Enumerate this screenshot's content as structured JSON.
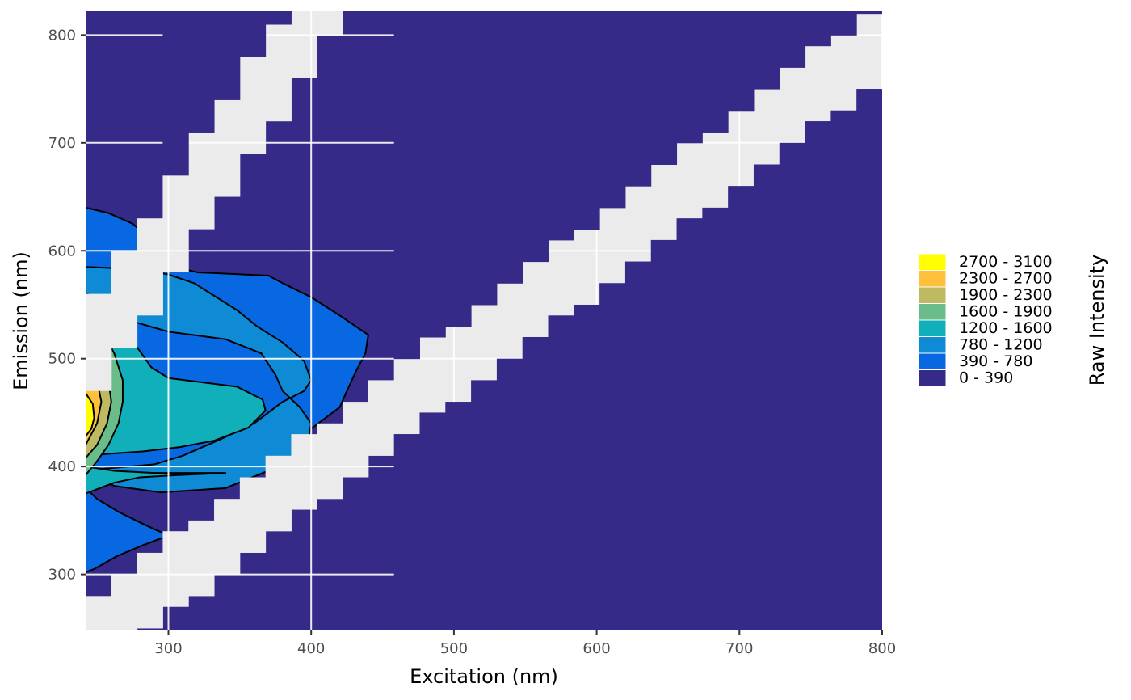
{
  "chart_data": {
    "type": "heatmap",
    "subtype": "filled-contour excitation-emission matrix",
    "xlabel": "Excitation (nm)",
    "ylabel": "Emission (nm)",
    "xlim": [
      242,
      800
    ],
    "ylim": [
      248,
      822
    ],
    "x_ticks": [
      300,
      400,
      500,
      600,
      700,
      800
    ],
    "y_ticks": [
      300,
      400,
      500,
      600,
      700,
      800
    ],
    "grid": true,
    "panel_background": "#EBEBEB",
    "legend": {
      "title": "Raw Intensity",
      "position": "right",
      "entries": [
        {
          "label": "2700 - 3100",
          "color": "#FFFF00"
        },
        {
          "label": "2300 - 2700",
          "color": "#FFC13B"
        },
        {
          "label": "1900 - 2300",
          "color": "#BDBA62"
        },
        {
          "label": "1600 - 1900",
          "color": "#6ABD8A"
        },
        {
          "label": "1200 - 1600",
          "color": "#10AFB9"
        },
        {
          "label": "780 - 1200",
          "color": "#0E8BD4"
        },
        {
          "label": "390 - 780",
          "color": "#0868E2"
        },
        {
          "label": "0 - 390",
          "color": "#352A87"
        }
      ]
    },
    "step_x": 18,
    "step_y": 10,
    "background_level": "0 - 390",
    "masked_bands": [
      {
        "description": "first-order scatter (emission ≈ excitation)",
        "offset_low": -40,
        "offset_high": 30
      },
      {
        "description": "second-order scatter (emission ≈ 2 × excitation)",
        "offset_low": -30,
        "offset_high": 60
      }
    ],
    "contour_regions": [
      {
        "level": "390 - 780",
        "outline": [
          [
            242,
            640
          ],
          [
            258,
            635
          ],
          [
            275,
            625
          ],
          [
            288,
            610
          ],
          [
            290,
            590
          ],
          [
            320,
            580
          ],
          [
            370,
            577
          ],
          [
            380,
            570
          ],
          [
            400,
            557
          ],
          [
            420,
            540
          ],
          [
            440,
            522
          ],
          [
            438,
            505
          ],
          [
            432,
            490
          ],
          [
            425,
            470
          ],
          [
            420,
            455
          ],
          [
            410,
            445
          ],
          [
            400,
            435
          ],
          [
            385,
            423
          ],
          [
            370,
            412
          ],
          [
            358,
            400
          ],
          [
            300,
            396
          ],
          [
            260,
            392
          ],
          [
            242,
            388
          ],
          [
            242,
            380
          ],
          [
            250,
            370
          ],
          [
            265,
            358
          ],
          [
            285,
            345
          ],
          [
            300,
            336
          ],
          [
            282,
            327
          ],
          [
            264,
            317
          ],
          [
            248,
            305
          ],
          [
            242,
            302
          ]
        ]
      },
      {
        "level": "780 - 1200",
        "outline": [
          [
            242,
            585
          ],
          [
            280,
            583
          ],
          [
            300,
            578
          ],
          [
            318,
            570
          ],
          [
            330,
            560
          ],
          [
            348,
            545
          ],
          [
            362,
            530
          ],
          [
            380,
            515
          ],
          [
            395,
            498
          ],
          [
            400,
            480
          ],
          [
            395,
            470
          ],
          [
            380,
            460
          ],
          [
            360,
            440
          ],
          [
            336,
            425
          ],
          [
            310,
            410
          ],
          [
            290,
            402
          ],
          [
            255,
            398
          ],
          [
            242,
            397
          ],
          [
            242,
            395
          ],
          [
            262,
            382
          ],
          [
            295,
            376
          ],
          [
            340,
            380
          ],
          [
            368,
            395
          ],
          [
            388,
            410
          ],
          [
            398,
            425
          ],
          [
            400,
            440
          ],
          [
            392,
            455
          ],
          [
            380,
            470
          ],
          [
            375,
            485
          ],
          [
            365,
            505
          ],
          [
            340,
            518
          ],
          [
            300,
            525
          ],
          [
            260,
            540
          ],
          [
            242,
            555
          ]
        ]
      },
      {
        "level": "1200 - 1600",
        "outline": [
          [
            242,
            560
          ],
          [
            258,
            555
          ],
          [
            266,
            535
          ],
          [
            273,
            520
          ],
          [
            288,
            492
          ],
          [
            300,
            482
          ],
          [
            348,
            474
          ],
          [
            366,
            462
          ],
          [
            368,
            452
          ],
          [
            356,
            436
          ],
          [
            332,
            424
          ],
          [
            308,
            418
          ],
          [
            282,
            414
          ],
          [
            260,
            412
          ],
          [
            242,
            410
          ],
          [
            242,
            400
          ],
          [
            262,
            396
          ],
          [
            290,
            394
          ],
          [
            340,
            394
          ],
          [
            305,
            392
          ],
          [
            280,
            390
          ],
          [
            262,
            385
          ],
          [
            242,
            375
          ]
        ]
      },
      {
        "level": "1600 - 1900",
        "outline": [
          [
            242,
            545
          ],
          [
            252,
            530
          ],
          [
            262,
            505
          ],
          [
            268,
            480
          ],
          [
            268,
            460
          ],
          [
            265,
            440
          ],
          [
            258,
            420
          ],
          [
            250,
            405
          ],
          [
            242,
            392
          ]
        ]
      },
      {
        "level": "1900 - 2300",
        "outline": [
          [
            242,
            512
          ],
          [
            252,
            505
          ],
          [
            258,
            480
          ],
          [
            260,
            460
          ],
          [
            257,
            440
          ],
          [
            250,
            420
          ],
          [
            242,
            408
          ]
        ]
      },
      {
        "level": "2300 - 2700",
        "outline": [
          [
            242,
            495
          ],
          [
            250,
            480
          ],
          [
            253,
            460
          ],
          [
            250,
            440
          ],
          [
            242,
            420
          ]
        ]
      },
      {
        "level": "2700 - 3100",
        "outline": [
          [
            242,
            468
          ],
          [
            247,
            458
          ],
          [
            248,
            445
          ],
          [
            246,
            435
          ],
          [
            242,
            428
          ]
        ]
      }
    ]
  }
}
